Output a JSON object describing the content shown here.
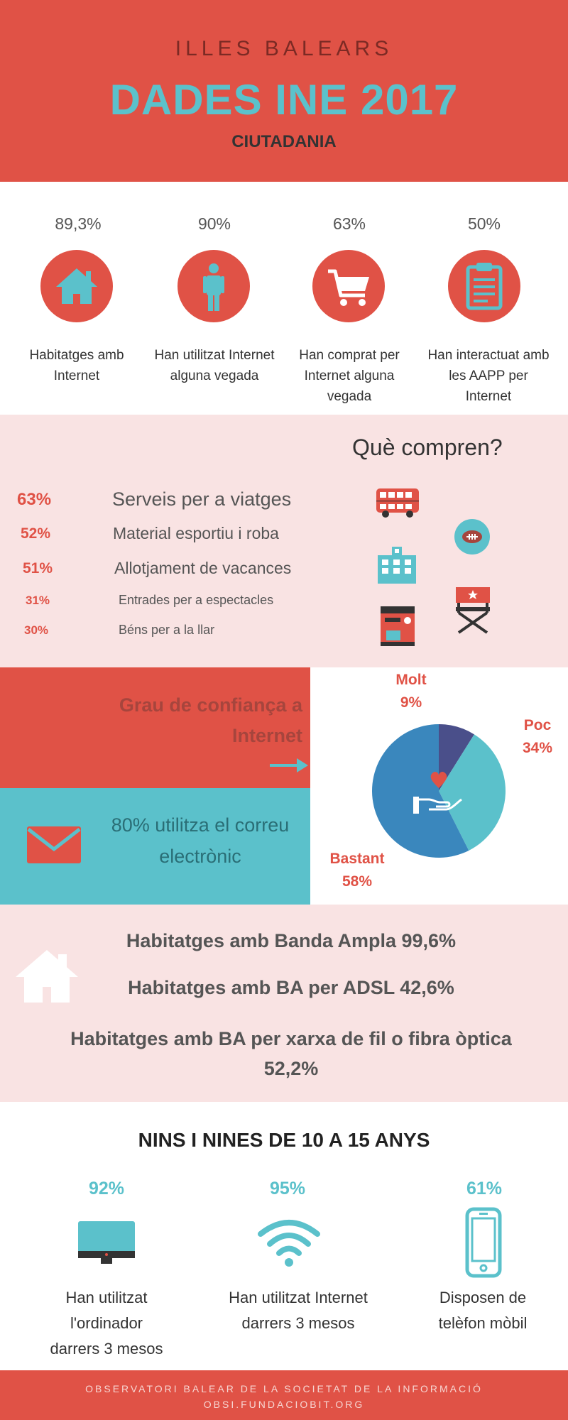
{
  "header": {
    "region": "ILLES BALEARS",
    "title": "DADES INE 2017",
    "subtitle": "CIUTADANIA"
  },
  "stats": [
    {
      "value": "89,3%",
      "label": "Habitatges amb Internet",
      "icon": "house-icon"
    },
    {
      "value": "90%",
      "label": "Han utilitzat Internet alguna vegada",
      "icon": "person-icon"
    },
    {
      "value": "63%",
      "label": "Han comprat per Internet alguna vegada",
      "icon": "shopping-cart-icon"
    },
    {
      "value": "50%",
      "label": "Han interactuat amb les AAPP per Internet",
      "icon": "clipboard-icon"
    }
  ],
  "purchases": {
    "title": "Què compren?",
    "items": [
      {
        "value": "63%",
        "label": "Serveis per a viatges"
      },
      {
        "value": "52%",
        "label": "Material esportiu i roba"
      },
      {
        "value": "51%",
        "label": "Allotjament de vacances"
      },
      {
        "value": "31%",
        "label": "Entrades per a espectacles"
      },
      {
        "value": "30%",
        "label": "Béns per a la llar"
      }
    ],
    "icons": [
      "bus-icon",
      "football-icon",
      "hotel-icon",
      "director-chair-icon",
      "coffee-machine-icon"
    ]
  },
  "trust": {
    "title": "Grau de confiança a Internet",
    "email_text": "80% utilitza el correu electrònic",
    "colors": {
      "molt": "#4a4f8a",
      "poc": "#5bc1cb",
      "bastant": "#3a87bd"
    }
  },
  "chart_data": {
    "type": "pie",
    "title": "Grau de confiança a Internet",
    "slices": [
      {
        "name": "Molt",
        "value": 9,
        "label": "9%"
      },
      {
        "name": "Poc",
        "value": 34,
        "label": "34%"
      },
      {
        "name": "Bastant",
        "value": 58,
        "label": "58%"
      }
    ]
  },
  "broadband": {
    "line1": "Habitatges amb Banda Ampla 99,6%",
    "line2": "Habitatges amb BA per ADSL 42,6%",
    "line3": "Habitatges amb BA per xarxa de fil o fibra òptica",
    "line3b": "52,2%"
  },
  "kids": {
    "title": "NINS I NINES DE 10 A 15 ANYS",
    "items": [
      {
        "value": "92%",
        "label_lines": [
          "Han utilitzat",
          "l'ordinador",
          "darrers 3 mesos"
        ],
        "icon": "monitor-icon"
      },
      {
        "value": "95%",
        "label_lines": [
          "Han utilitzat Internet",
          "darrers 3 mesos"
        ],
        "icon": "wifi-icon"
      },
      {
        "value": "61%",
        "label_lines": [
          "Disposen de",
          "telèfon mòbil"
        ],
        "icon": "mobile-phone-icon"
      }
    ]
  },
  "footer": {
    "line1": "OBSERVATORI BALEAR DE LA SOCIETAT DE LA INFORMACIÓ",
    "line2": "OBSI.FUNDACIOBIT.ORG"
  },
  "colors": {
    "red": "#e05246",
    "teal": "#5bc1cb",
    "pink": "#f9e3e3"
  }
}
